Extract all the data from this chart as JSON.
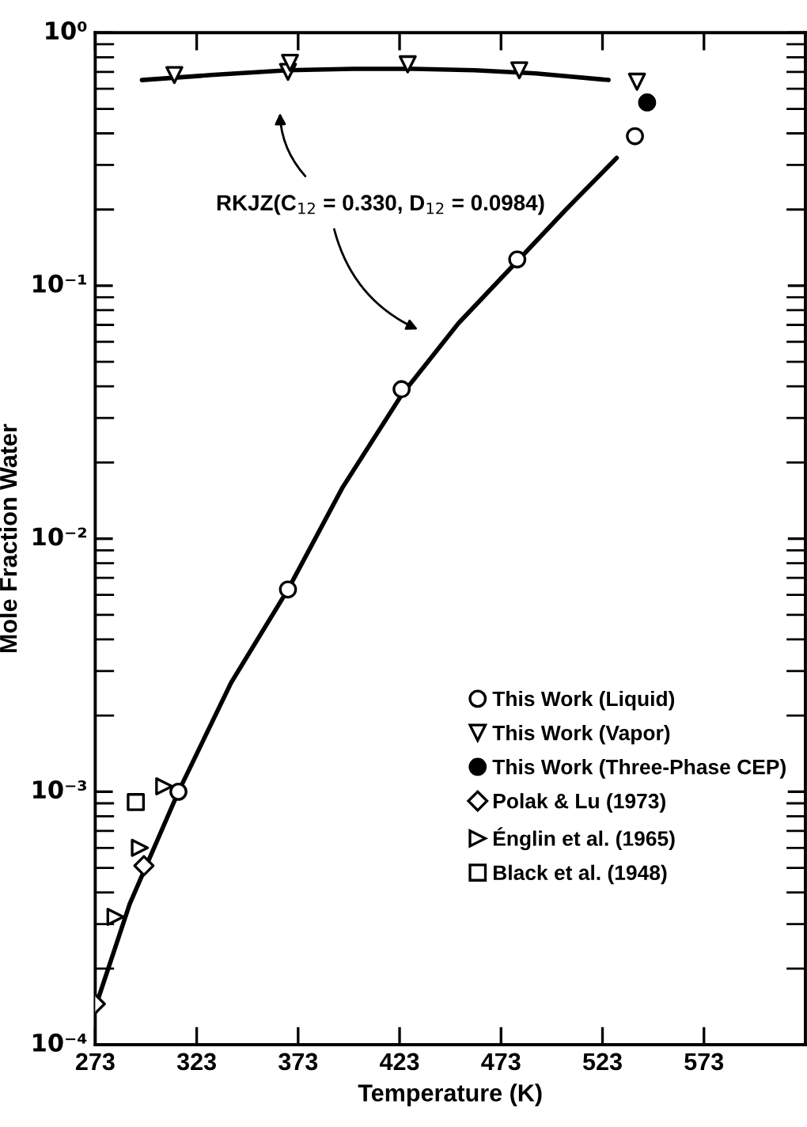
{
  "chart_data": {
    "type": "scatter",
    "xlabel": "Temperature (K)",
    "ylabel": "Mole Fraction Water",
    "xlim": [
      273,
      623
    ],
    "xticks": [
      273,
      323,
      373,
      423,
      473,
      523,
      573
    ],
    "ylim": [
      0.0001,
      1
    ],
    "yticks": [
      {
        "value": 0.0001,
        "label": "10⁻⁴"
      },
      {
        "value": 0.001,
        "label": "10⁻³"
      },
      {
        "value": 0.01,
        "label": "10⁻²"
      },
      {
        "value": 0.1,
        "label": "10⁻¹"
      },
      {
        "value": 1,
        "label": "10⁰"
      }
    ],
    "log": "y",
    "grid": false,
    "legend": "bottom right",
    "annotations": [
      "RKJZ(C$_{12}$ = 0.330, D$_{12}$ = 0.0984)"
    ],
    "series": [
      {
        "name": "This Work (Liquid)",
        "marker": "circle",
        "color": "#000000",
        "x": [
          314,
          368,
          424,
          481,
          539
        ],
        "values": [
          0.001,
          0.0063,
          0.039,
          0.127,
          0.39
        ]
      },
      {
        "name": "This Work (Vapor)",
        "marker": "triangle-down",
        "color": "#000000",
        "x": [
          312,
          368,
          369,
          427,
          482,
          540
        ],
        "values": [
          0.68,
          0.7,
          0.76,
          0.75,
          0.71,
          0.64
        ]
      },
      {
        "name": "This Work (Three-Phase CEP)",
        "marker": "circle",
        "color": "#000000",
        "x": [
          545
        ],
        "values": [
          0.53
        ]
      },
      {
        "name": "Polak & Lu (1973)",
        "marker": "diamond",
        "color": "#000000",
        "x": [
          273,
          297
        ],
        "values": [
          0.000145,
          0.00051
        ]
      },
      {
        "name": "Énglin et al. (1965)",
        "marker": "triangle-right",
        "color": "#000000",
        "x": [
          283,
          295,
          307
        ],
        "values": [
          0.00032,
          0.0006,
          0.00105
        ]
      },
      {
        "name": "Black et al. (1948)",
        "marker": "square",
        "color": "#000000",
        "x": [
          293
        ],
        "values": [
          0.00091
        ]
      },
      {
        "type": "line",
        "marker": "none",
        "color": "#000000",
        "x": [
          273,
          290,
          314,
          340,
          368,
          395,
          424,
          452,
          481,
          505,
          530
        ],
        "values": [
          0.00014,
          0.00036,
          0.001,
          0.0027,
          0.0063,
          0.016,
          0.037,
          0.071,
          0.125,
          0.2,
          0.32
        ]
      },
      {
        "type": "line",
        "marker": "none",
        "color": "#000000",
        "x": [
          296,
          330,
          368,
          400,
          430,
          460,
          490,
          526
        ],
        "values": [
          0.65,
          0.68,
          0.71,
          0.72,
          0.72,
          0.71,
          0.69,
          0.65
        ]
      }
    ]
  }
}
